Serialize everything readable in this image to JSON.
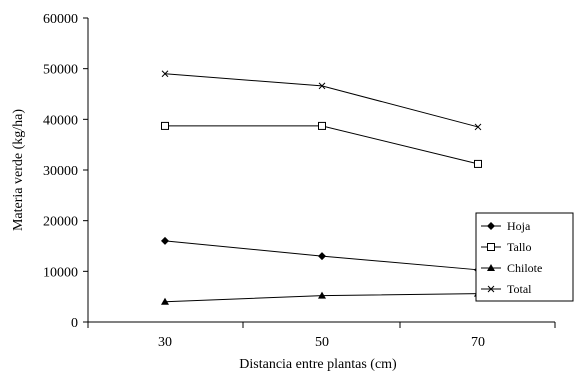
{
  "chart_data": {
    "type": "line",
    "categories": [
      "30",
      "50",
      "70"
    ],
    "ylabel": "Materia verde (kg/ha)",
    "xlabel": "Distancia entre plantas (cm)",
    "ylim": [
      0,
      60000
    ],
    "yticks": [
      0,
      10000,
      20000,
      30000,
      40000,
      50000,
      60000
    ],
    "ytick_labels": [
      "0",
      "10000",
      "20000",
      "30000",
      "40000",
      "50000",
      "60000"
    ],
    "grid": false,
    "legend_position": "lower-right",
    "series": [
      {
        "name": "Hoja",
        "marker": "diamond",
        "values": [
          16000,
          13000,
          10300
        ]
      },
      {
        "name": "Tallo",
        "marker": "square-open",
        "values": [
          38700,
          38700,
          31200
        ]
      },
      {
        "name": "Chilote",
        "marker": "triangle",
        "values": [
          4000,
          5200,
          5600
        ]
      },
      {
        "name": "Total",
        "marker": "x",
        "values": [
          49000,
          46600,
          38500
        ]
      }
    ],
    "color": "#000000"
  }
}
